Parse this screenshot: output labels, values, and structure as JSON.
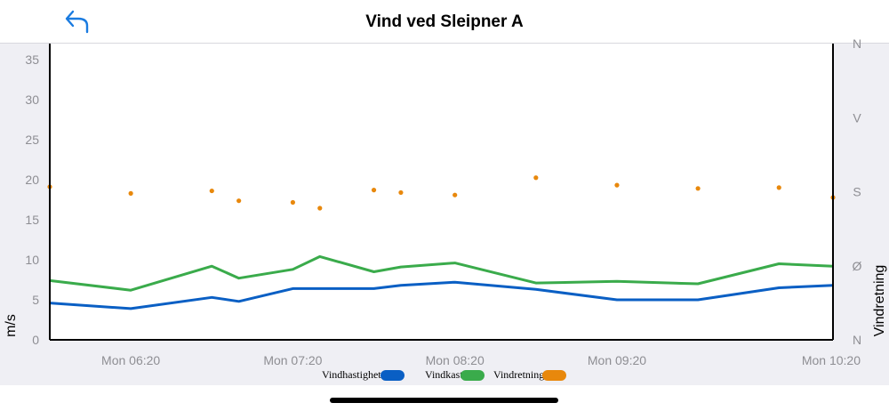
{
  "header": {
    "title": "Vind ved Sleipner A",
    "back_icon": "back-arrow-icon"
  },
  "colors": {
    "speed": "#0a5fc4",
    "gust": "#3aab4b",
    "direction": "#e8880c",
    "accent": "#1a7be0"
  },
  "chart_data": {
    "type": "line",
    "x_tick_labels": [
      "Mon 06:20",
      "Mon 07:20",
      "Mon 08:20",
      "Mon 09:20",
      "Mon 10:20"
    ],
    "xlim": [
      "05:50",
      "10:40"
    ],
    "left_axis": {
      "label": "m/s",
      "ylim": [
        0,
        37
      ],
      "ticks": [
        "0",
        "5",
        "10",
        "15",
        "20",
        "25",
        "30",
        "35"
      ]
    },
    "right_axis": {
      "label": "Vindretning",
      "ticks": [
        "N",
        "Ø",
        "S",
        "V",
        "N"
      ]
    },
    "series": [
      {
        "name": "Vindhastighet",
        "axis": "left",
        "points": [
          [
            "05:50",
            4.6
          ],
          [
            "06:20",
            3.9
          ],
          [
            "06:50",
            5.3
          ],
          [
            "07:00",
            4.8
          ],
          [
            "07:20",
            6.4
          ],
          [
            "07:50",
            6.4
          ],
          [
            "08:00",
            6.8
          ],
          [
            "08:20",
            7.2
          ],
          [
            "08:50",
            6.3
          ],
          [
            "09:20",
            5.0
          ],
          [
            "09:50",
            5.0
          ],
          [
            "10:20",
            6.5
          ],
          [
            "10:40",
            6.8
          ]
        ]
      },
      {
        "name": "Vindkast",
        "axis": "left",
        "points": [
          [
            "05:50",
            7.4
          ],
          [
            "06:20",
            6.2
          ],
          [
            "06:50",
            9.2
          ],
          [
            "07:00",
            7.7
          ],
          [
            "07:20",
            8.8
          ],
          [
            "07:30",
            10.4
          ],
          [
            "07:50",
            8.5
          ],
          [
            "08:00",
            9.1
          ],
          [
            "08:20",
            9.6
          ],
          [
            "08:50",
            7.1
          ],
          [
            "09:20",
            7.3
          ],
          [
            "09:50",
            7.0
          ],
          [
            "10:20",
            9.5
          ],
          [
            "10:40",
            9.2
          ]
        ]
      },
      {
        "name": "Vindretning",
        "axis": "right",
        "type": "scatter",
        "points": [
          [
            "05:50",
            186
          ],
          [
            "06:20",
            178
          ],
          [
            "06:50",
            181
          ],
          [
            "07:00",
            169
          ],
          [
            "07:20",
            167
          ],
          [
            "07:30",
            160
          ],
          [
            "07:50",
            182
          ],
          [
            "08:00",
            179
          ],
          [
            "08:20",
            176
          ],
          [
            "08:50",
            197
          ],
          [
            "09:20",
            188
          ],
          [
            "09:50",
            184
          ],
          [
            "10:20",
            185
          ],
          [
            "10:40",
            173
          ]
        ]
      }
    ],
    "grid": false,
    "legend_position": "bottom-center"
  }
}
